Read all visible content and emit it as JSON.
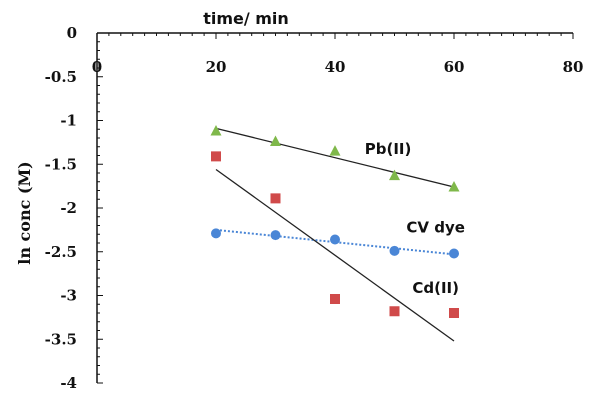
{
  "chart_data": {
    "type": "scatter",
    "title": "",
    "xlabel": "time/ min",
    "ylabel": "ln conc (M)",
    "xlim": [
      0,
      80
    ],
    "ylim": [
      -4,
      0
    ],
    "x_ticks": [
      "0",
      "20",
      "40",
      "60",
      "80"
    ],
    "y_ticks": [
      "0",
      "-0.5",
      "-1",
      "-1.5",
      "-2",
      "-2.5",
      "-3",
      "-3.5",
      "-4"
    ],
    "x_axis_position": "top",
    "grid": false,
    "legend": "none",
    "series": [
      {
        "name": "Pb(II)",
        "marker": "triangle",
        "color": "#7fb84a",
        "trendline_color": "#222222",
        "trendline_style": "solid",
        "x": [
          20,
          30,
          40,
          50,
          60
        ],
        "y": [
          -1.12,
          -1.24,
          -1.35,
          -1.63,
          -1.76
        ],
        "trendline": [
          [
            20,
            -1.09
          ],
          [
            60,
            -1.76
          ]
        ]
      },
      {
        "name": "CV dye",
        "marker": "circle",
        "color": "#4a86d6",
        "trendline_color": "#4a86d6",
        "trendline_style": "dotted",
        "x": [
          20,
          30,
          40,
          50,
          60
        ],
        "y": [
          -2.29,
          -2.31,
          -2.36,
          -2.49,
          -2.52
        ],
        "trendline": [
          [
            20,
            -2.25
          ],
          [
            60,
            -2.53
          ]
        ]
      },
      {
        "name": "Cd(II)",
        "marker": "square",
        "color": "#d04a4a",
        "trendline_color": "#222222",
        "trendline_style": "solid",
        "x": [
          20,
          30,
          40,
          50,
          60
        ],
        "y": [
          -1.41,
          -1.89,
          -3.04,
          -3.18,
          -3.2
        ],
        "trendline": [
          [
            20,
            -1.56
          ],
          [
            60,
            -3.52
          ]
        ]
      }
    ],
    "annotations": [
      {
        "text": "Pb(II)",
        "x": 45,
        "y": -1.38
      },
      {
        "text": "CV dye",
        "x": 52,
        "y": -2.28
      },
      {
        "text": "Cd(II)",
        "x": 53,
        "y": -2.97
      }
    ]
  }
}
